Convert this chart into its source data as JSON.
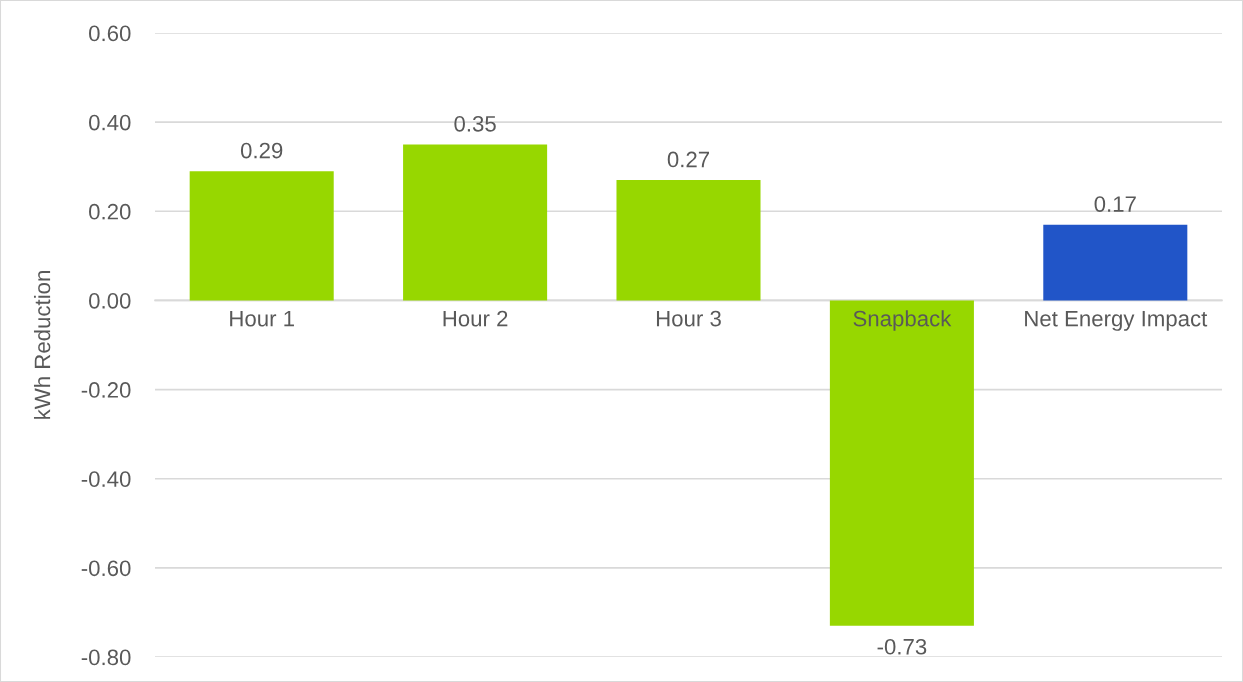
{
  "chart_data": {
    "type": "bar",
    "ylabel": "kWh Reduction",
    "categories": [
      "Hour 1",
      "Hour 2",
      "Hour 3",
      "Snapback",
      "Net Energy Impact"
    ],
    "values": [
      0.29,
      0.35,
      0.27,
      -0.73,
      0.17
    ],
    "colors": [
      "#97d700",
      "#97d700",
      "#97d700",
      "#97d700",
      "#2155c8"
    ],
    "ylim": [
      -0.8,
      0.6
    ],
    "yticks": [
      {
        "value": -0.8,
        "label": "-0.80"
      },
      {
        "value": -0.6,
        "label": "-0.60"
      },
      {
        "value": -0.4,
        "label": "-0.40"
      },
      {
        "value": -0.2,
        "label": "-0.20"
      },
      {
        "value": 0,
        "label": "0.00"
      },
      {
        "value": 0.2,
        "label": "0.20"
      },
      {
        "value": 0.4,
        "label": "0.40"
      },
      {
        "value": 0.6,
        "label": "0.60"
      }
    ],
    "grid": "y",
    "data_labels": true
  }
}
